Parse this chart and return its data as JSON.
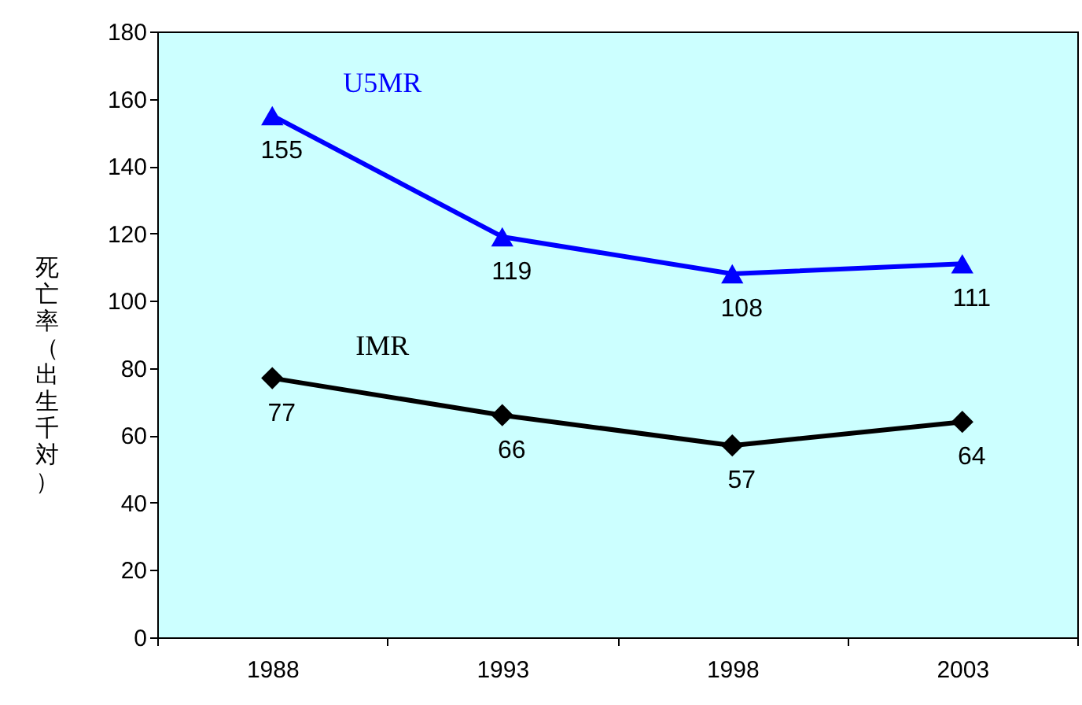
{
  "chart_data": {
    "type": "line",
    "ylabel": "死亡率（出生千対）",
    "categories": [
      "1988",
      "1993",
      "1998",
      "2003"
    ],
    "series": [
      {
        "name": "U5MR",
        "color": "#0000ff",
        "marker": "triangle",
        "values": [
          155,
          119,
          108,
          111
        ]
      },
      {
        "name": "IMR",
        "color": "#000000",
        "marker": "diamond",
        "values": [
          77,
          66,
          57,
          64
        ]
      }
    ],
    "ylim": [
      0,
      180
    ],
    "yticks": [
      0,
      20,
      40,
      60,
      80,
      100,
      120,
      140,
      160,
      180
    ],
    "data_labels": true,
    "grid": false,
    "line_style": "solid"
  }
}
